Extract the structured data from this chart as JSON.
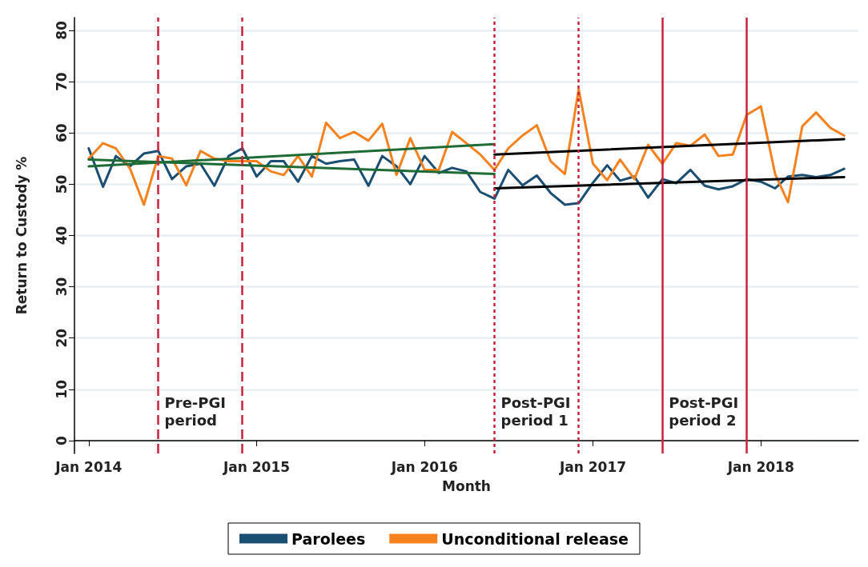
{
  "chart_data": {
    "type": "line",
    "xlabel": "Month",
    "ylabel": "Return to Custody %",
    "x": [
      "2014-01",
      "2014-02",
      "2014-03",
      "2014-04",
      "2014-05",
      "2014-06",
      "2014-07",
      "2014-08",
      "2014-09",
      "2014-10",
      "2014-11",
      "2014-12",
      "2015-01",
      "2015-02",
      "2015-03",
      "2015-04",
      "2015-05",
      "2015-06",
      "2015-07",
      "2015-08",
      "2015-09",
      "2015-10",
      "2015-11",
      "2015-12",
      "2016-01",
      "2016-02",
      "2016-03",
      "2016-04",
      "2016-05",
      "2016-06",
      "2016-07",
      "2016-08",
      "2016-09",
      "2016-10",
      "2016-11",
      "2016-12",
      "2017-01",
      "2017-02",
      "2017-03",
      "2017-04",
      "2017-05",
      "2017-06",
      "2017-07",
      "2017-08",
      "2017-09",
      "2017-10",
      "2017-11",
      "2017-12",
      "2018-01",
      "2018-02",
      "2018-03",
      "2018-04",
      "2018-05",
      "2018-06",
      "2018-07"
    ],
    "series": [
      {
        "name": "Parolees",
        "color": "#1a4e72",
        "values": [
          57,
          49.5,
          55.5,
          53.5,
          56,
          56.5,
          51,
          53.5,
          54,
          49.7,
          55.5,
          57,
          51.5,
          54.5,
          54.5,
          50.5,
          55.5,
          54,
          54.5,
          54.8,
          49.7,
          55.5,
          53.5,
          50,
          55.5,
          52.2,
          53.2,
          52.5,
          48.5,
          47.2,
          52.8,
          49.8,
          51.7,
          48.3,
          46,
          46.3,
          50.3,
          53.7,
          50.7,
          51.5,
          47.4,
          51,
          50.2,
          52.8,
          49.7,
          49,
          49.6,
          51,
          50.5,
          49.2,
          51.5,
          51.8,
          51.4,
          51.8,
          53
        ]
      },
      {
        "name": "Unconditional release",
        "color": "#f5821f",
        "values": [
          55,
          58,
          57,
          53,
          46,
          55.5,
          55,
          49.8,
          56.5,
          55,
          54.5,
          54.5,
          54.5,
          52.5,
          51.8,
          55.5,
          51.5,
          62,
          59,
          60.2,
          58.5,
          61.8,
          51.8,
          59,
          52.8,
          52.8,
          60.2,
          58,
          55.8,
          52.8,
          57,
          59.5,
          61.5,
          54.5,
          52,
          68.5,
          54,
          50.8,
          54.8,
          51,
          57.7,
          54,
          58,
          57.5,
          59.7,
          55.5,
          55.8,
          63.5,
          65.2,
          52,
          46.5,
          61.3,
          64,
          61,
          59.5
        ]
      },
      {
        "color": "#1f6b35",
        "x": [
          "2014-01",
          "2016-06"
        ],
        "values": [
          54.8,
          52
        ]
      },
      {
        "color": "#1f6b35",
        "x": [
          "2014-01",
          "2016-06"
        ],
        "values": [
          53.5,
          57.8
        ]
      },
      {
        "color": "#000000",
        "x": [
          "2016-06",
          "2018-07"
        ],
        "values": [
          49.2,
          51.4
        ]
      },
      {
        "color": "#000000",
        "x": [
          "2016-06",
          "2018-07"
        ],
        "values": [
          55.8,
          58.8
        ]
      }
    ],
    "xlim": [
      "2013-12",
      "2018-08"
    ],
    "xticks": [
      {
        "value": "2014-01",
        "label": "Jan 2014"
      },
      {
        "value": "2015-01",
        "label": "Jan 2015"
      },
      {
        "value": "2016-01",
        "label": "Jan 2016"
      },
      {
        "value": "2017-01",
        "label": "Jan 2017"
      },
      {
        "value": "2018-01",
        "label": "Jan 2018"
      }
    ],
    "ylim": [
      -2.5,
      82.5
    ],
    "yticks": [
      0,
      10,
      20,
      30,
      40,
      50,
      60,
      70,
      80
    ],
    "ref_lines": [
      {
        "axis": "x",
        "value": "2014-06",
        "label": "Pre-PGI\nperiod",
        "color": "#c8233c",
        "line_style": "dashed"
      },
      {
        "axis": "x",
        "value": "2014-12",
        "label": null,
        "color": "#c8233c",
        "line_style": "dashed"
      },
      {
        "axis": "x",
        "value": "2016-06",
        "label": "Post-PGI\nperiod 1",
        "color": "#c8233c",
        "line_style": "dotted"
      },
      {
        "axis": "x",
        "value": "2016-12",
        "label": null,
        "color": "#c8233c",
        "line_style": "dotted"
      },
      {
        "axis": "x",
        "value": "2017-06",
        "label": "Post-PGI\nperiod 2",
        "color": "#c8233c",
        "line_style": "solid"
      },
      {
        "axis": "x",
        "value": "2017-12",
        "label": null,
        "color": "#c8233c",
        "line_style": "solid"
      }
    ],
    "grid": "y",
    "legend": "bottom",
    "marker": "none",
    "line_style": "solid"
  }
}
